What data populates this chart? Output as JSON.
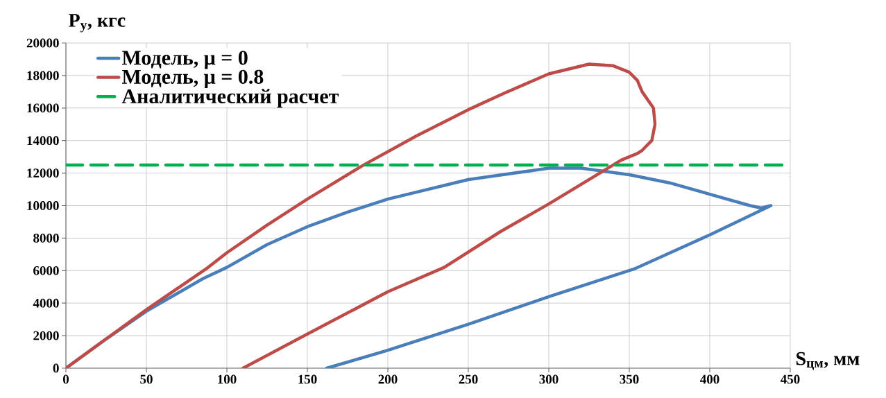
{
  "chart_data": {
    "type": "line",
    "xlabel": "S$_{цм}$, мм",
    "ylabel": "P$_{y}$, кгс",
    "xlim": [
      0,
      450
    ],
    "ylim": [
      0,
      20000
    ],
    "xticks": [
      0,
      50,
      100,
      150,
      200,
      250,
      300,
      350,
      400,
      450
    ],
    "yticks": [
      0,
      2000,
      4000,
      6000,
      8000,
      10000,
      12000,
      14000,
      16000,
      18000,
      20000
    ],
    "grid": true,
    "legend": "top left",
    "marker": "none",
    "series": [
      {
        "name": "Модель, μ = 0",
        "color": "#4a7ebb",
        "line_style": "solid",
        "x": [
          0,
          25,
          50,
          85,
          100,
          125,
          150,
          175,
          200,
          250,
          300,
          320,
          350,
          375,
          400,
          425,
          432,
          438,
          400,
          353,
          300,
          250,
          200,
          162
        ],
        "values": [
          0,
          1800,
          3500,
          5500,
          6200,
          7600,
          8700,
          9600,
          10400,
          11600,
          12300,
          12300,
          11900,
          11400,
          10700,
          10000,
          9850,
          10000,
          8200,
          6100,
          4400,
          2700,
          1100,
          0
        ]
      },
      {
        "name": "Модель, μ = 0.8",
        "color": "#be4b48",
        "line_style": "solid",
        "x": [
          0,
          25,
          50,
          87,
          100,
          125,
          150,
          185,
          218,
          250,
          272,
          300,
          325,
          340,
          350,
          355,
          358,
          365,
          366,
          364,
          358,
          355,
          345,
          300,
          270,
          235,
          200,
          150,
          110
        ],
        "values": [
          0,
          1800,
          3600,
          6100,
          7100,
          8800,
          10400,
          12500,
          14300,
          15900,
          16900,
          18100,
          18700,
          18600,
          18200,
          17700,
          17000,
          16000,
          15000,
          14000,
          13400,
          13200,
          12800,
          10100,
          8400,
          6200,
          4700,
          2100,
          0
        ]
      },
      {
        "name": "Аналитический расчет",
        "color": "#00b050",
        "line_style": "dashed",
        "x": [
          0,
          450
        ],
        "values": [
          12500,
          12500
        ]
      }
    ]
  }
}
